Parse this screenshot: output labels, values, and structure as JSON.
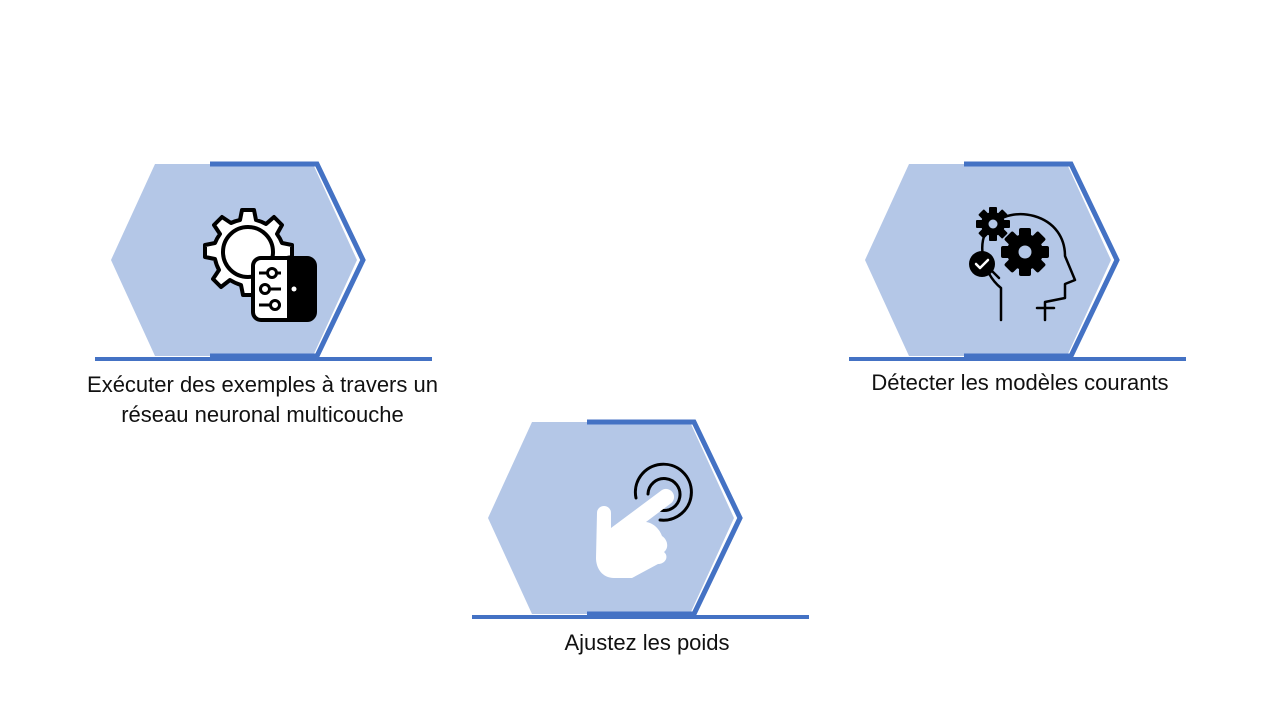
{
  "slide": {
    "background": "#ffffff",
    "hex_fill": "#b4c7e7",
    "hex_outline": "#4472c4",
    "steps": [
      {
        "id": "run-examples",
        "icon": "gear-with-control-panel-icon",
        "label": "Exécuter des exemples à travers un\nréseau neuronal multicouche"
      },
      {
        "id": "detect-patterns",
        "icon": "head-with-gears-icon",
        "label": "Détecter les modèles courants"
      },
      {
        "id": "adjust-weights",
        "icon": "hand-tap-icon",
        "label": "Ajustez les poids"
      }
    ]
  }
}
